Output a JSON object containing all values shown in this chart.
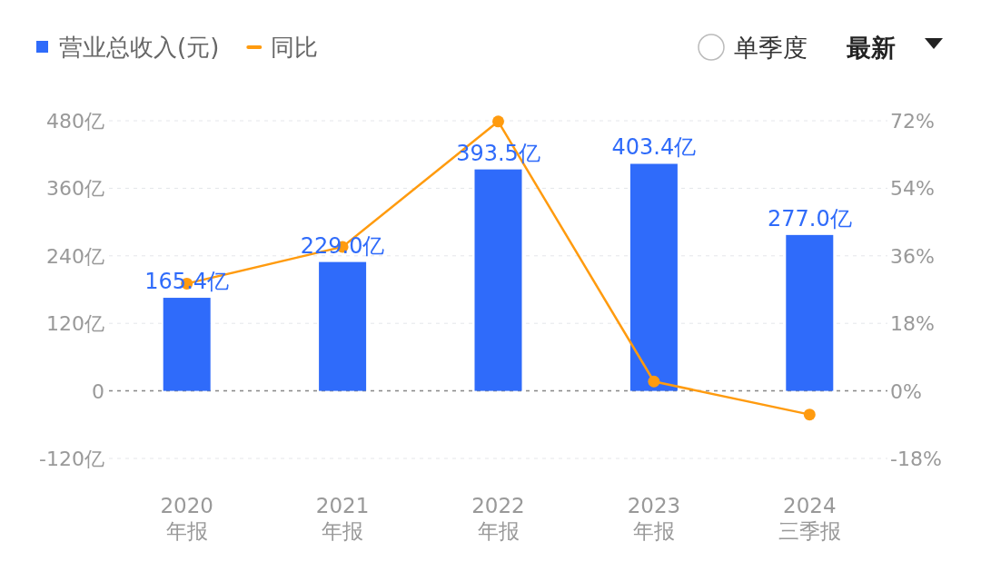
{
  "chart_data": {
    "type": "bar",
    "categories": [
      "2020\n年报",
      "2021\n年报",
      "2022\n年报",
      "2023\n年报",
      "2024\n三季报"
    ],
    "series": [
      {
        "name": "营业总收入(元)",
        "color": "#2f6bfa",
        "values": [
          165.4,
          229.0,
          393.5,
          403.4,
          277.0
        ],
        "value_labels": [
          "165.4亿",
          "229.0亿",
          "393.5亿",
          "403.4亿",
          "277.0亿"
        ]
      },
      {
        "name": "同比",
        "type": "line",
        "axis": "y2",
        "color": "#ff9b0f",
        "marker": "circle",
        "values": [
          28.6,
          38.4,
          71.8,
          2.5,
          -6.3
        ]
      }
    ],
    "ylim": [
      -120,
      480
    ],
    "yticks": [
      {
        "value": -120,
        "label": "-120亿"
      },
      {
        "value": 0,
        "label": "0"
      },
      {
        "value": 120,
        "label": "120亿"
      },
      {
        "value": 240,
        "label": "240亿"
      },
      {
        "value": 360,
        "label": "360亿"
      },
      {
        "value": 480,
        "label": "480亿"
      }
    ],
    "y2lim": [
      -18,
      72
    ],
    "y2ticks": [
      {
        "value": -18,
        "label": "-18%"
      },
      {
        "value": 0,
        "label": "0%"
      },
      {
        "value": 18,
        "label": "18%"
      },
      {
        "value": 36,
        "label": "36%"
      },
      {
        "value": 54,
        "label": "54%"
      },
      {
        "value": 72,
        "label": "72%"
      }
    ],
    "ref_lines": [
      {
        "axis": "y",
        "value": 0,
        "color": "#888888",
        "line_style": "dashed"
      }
    ],
    "grid": "y",
    "legend": "top left",
    "annotations": [
      "单季度",
      "最新"
    ]
  }
}
